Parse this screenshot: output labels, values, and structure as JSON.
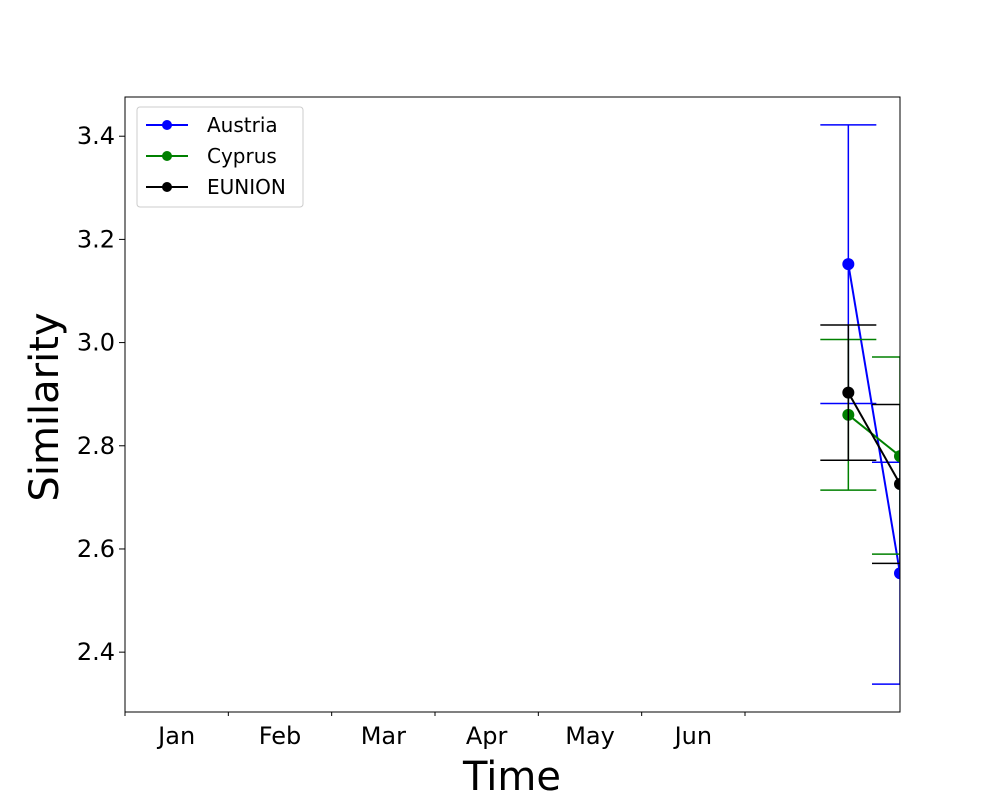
{
  "chart_data": {
    "type": "line",
    "xlabel": "Time",
    "ylabel": "Similarity",
    "x_tick_labels": [
      "Jan",
      "Feb",
      "Mar",
      "Apr",
      "May",
      "Jun"
    ],
    "x_range_months": [
      0.5,
      8.0
    ],
    "ylim": [
      2.284,
      3.476
    ],
    "y_ticks": [
      2.4,
      2.6,
      2.8,
      3.0,
      3.2,
      3.4
    ],
    "grid": false,
    "legend_position": "top-left",
    "x_points": [
      7.5,
      8.0
    ],
    "series": [
      {
        "name": "Austria",
        "color": "#0000ff",
        "values": [
          3.152,
          2.553
        ],
        "err_low": [
          2.882,
          2.338
        ],
        "err_high": [
          3.422,
          2.768
        ]
      },
      {
        "name": "Cyprus",
        "color": "#008000",
        "values": [
          2.86,
          2.78
        ],
        "err_low": [
          2.714,
          2.59
        ],
        "err_high": [
          3.006,
          2.972
        ]
      },
      {
        "name": "EUNION",
        "color": "#000000",
        "values": [
          2.903,
          2.726
        ],
        "err_low": [
          2.772,
          2.572
        ],
        "err_high": [
          3.034,
          2.88
        ]
      }
    ]
  }
}
